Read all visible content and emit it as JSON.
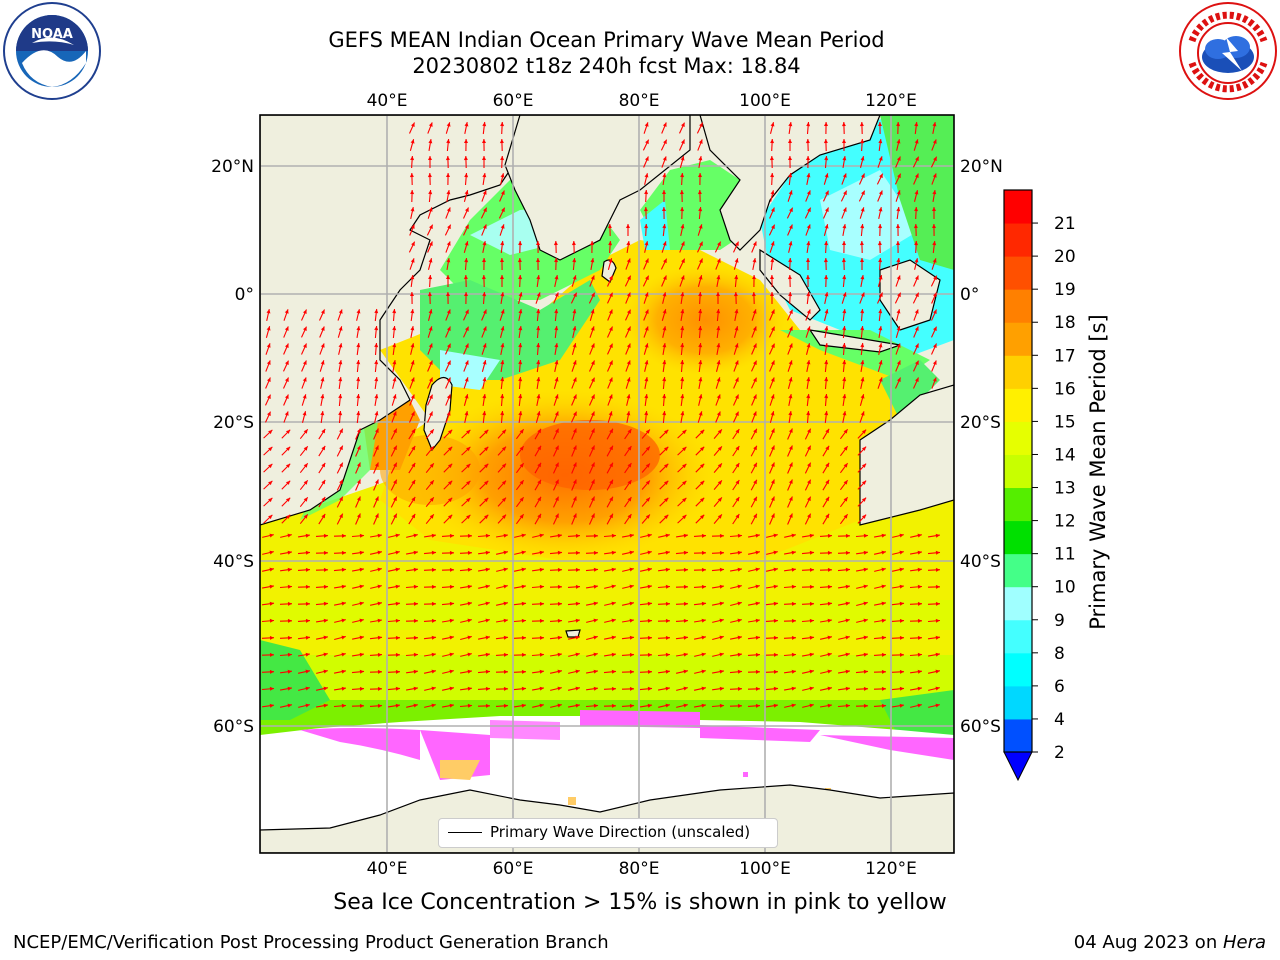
{
  "title_line1": "GEFS MEAN Indian Ocean Primary Wave Mean Period",
  "title_line2": "20230802 t18z 240h fcst   Max: 18.84",
  "logos": {
    "left": "noaa-logo",
    "right": "national-weather-service-logo"
  },
  "map": {
    "lon_ticks": [
      "40°E",
      "60°E",
      "80°E",
      "100°E",
      "120°E"
    ],
    "lat_ticks": [
      "20°N",
      "0°",
      "20°S",
      "40°S",
      "60°S"
    ],
    "land_color": "#efefde",
    "arrow_color": "#ff0000"
  },
  "legend": {
    "label": "Primary Wave Direction (unscaled)"
  },
  "colorbar": {
    "title": "Primary Wave Mean Period [s]",
    "ticks": [
      "2",
      "4",
      "6",
      "8",
      "9",
      "10",
      "11",
      "12",
      "13",
      "14",
      "15",
      "16",
      "17",
      "18",
      "19",
      "20",
      "21"
    ],
    "colors": [
      "#0050ff",
      "#00d8ff",
      "#00ffff",
      "#44ffff",
      "#a0ffff",
      "#44ff88",
      "#00e000",
      "#55ee00",
      "#c8ff00",
      "#e6ff00",
      "#fff000",
      "#ffd000",
      "#ffa000",
      "#ff8000",
      "#ff5000",
      "#ff2800",
      "#ff0000"
    ],
    "extend_color": "#0000ff"
  },
  "note": "Sea Ice Concentration > 15% is shown in pink to yellow",
  "footer": {
    "left": "NCEP/EMC/Verification Post Processing Product Generation Branch",
    "date": "04 Aug 2023 on ",
    "machine": "Hera"
  }
}
